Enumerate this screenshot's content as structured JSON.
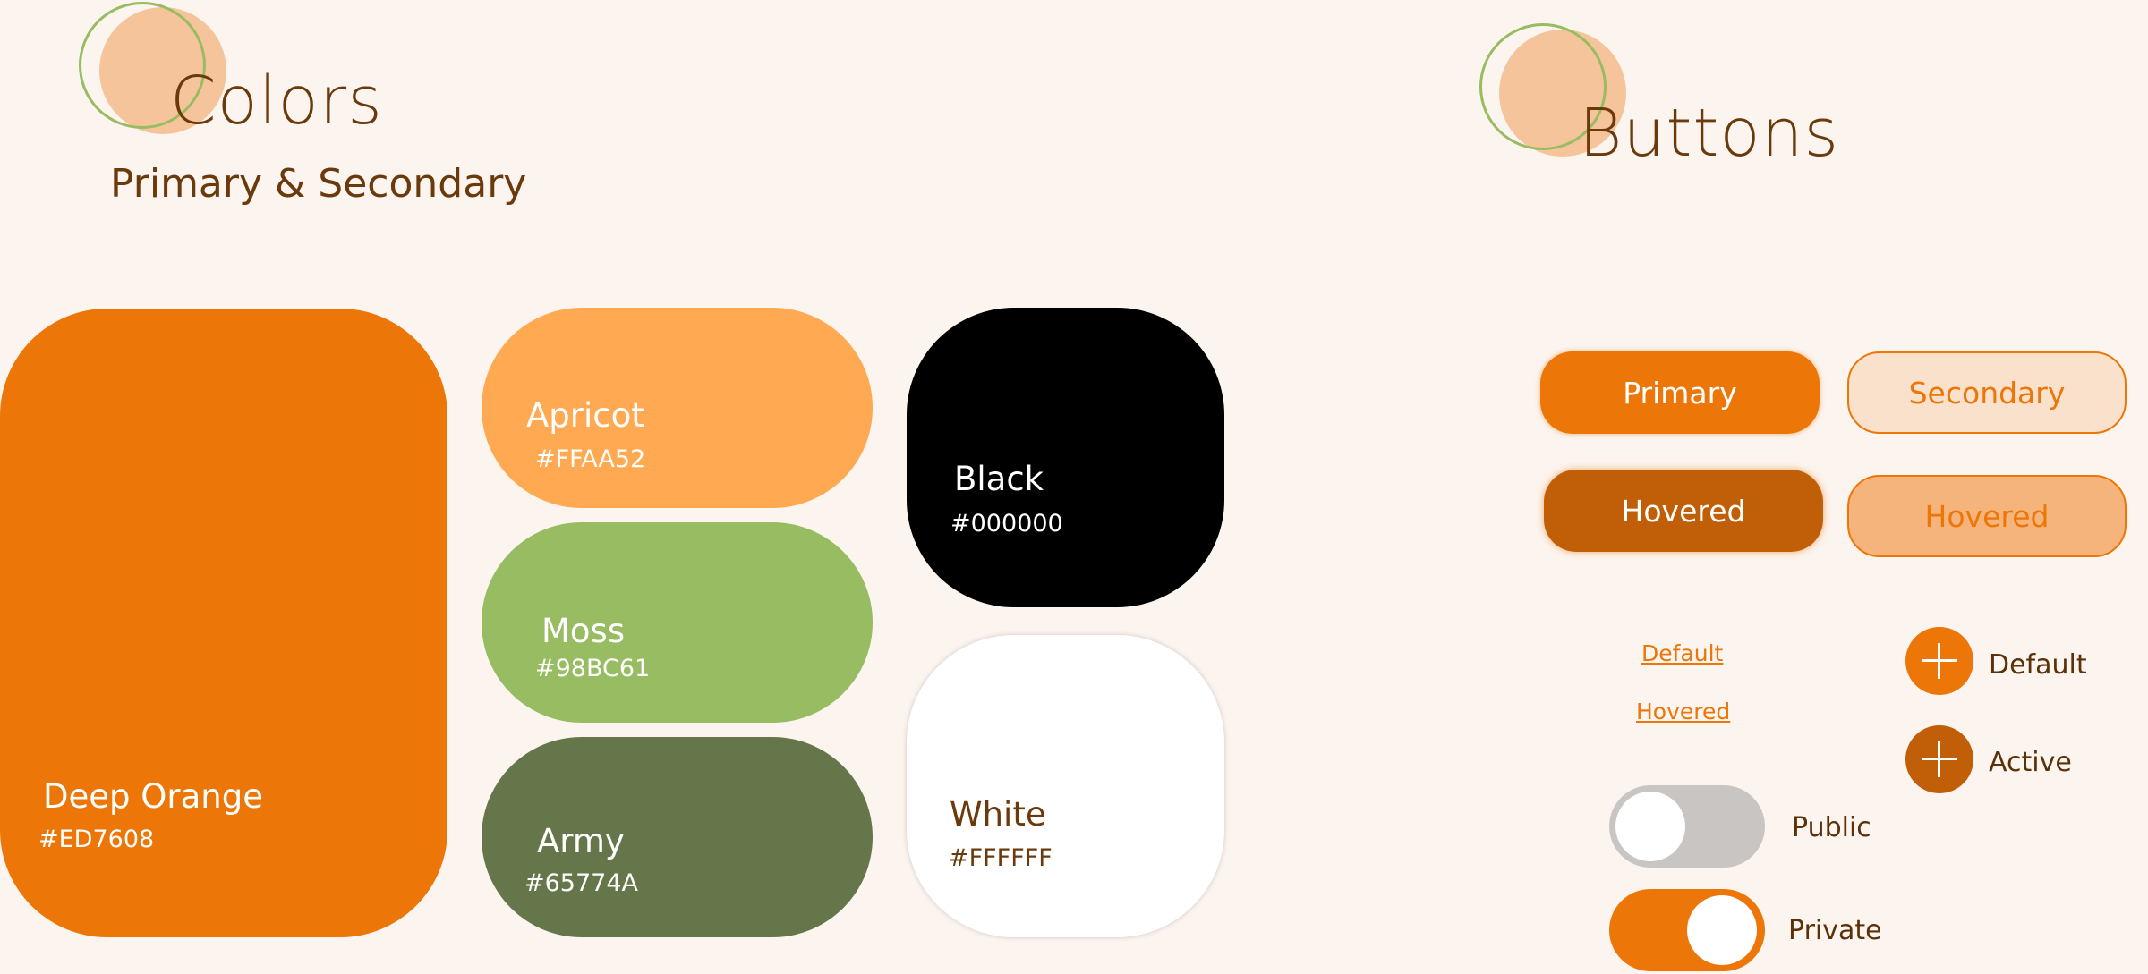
{
  "colors_section": {
    "title": "Colors",
    "subtitle": "Primary & Secondary"
  },
  "swatches": {
    "deep_orange": {
      "name": "Deep Orange",
      "hex": "#ED7608"
    },
    "apricot": {
      "name": "Apricot",
      "hex": "#FFAA52"
    },
    "moss": {
      "name": "Moss",
      "hex": "#98BC61"
    },
    "army": {
      "name": "Army",
      "hex": "#65774A"
    },
    "black": {
      "name": "Black",
      "hex": "#000000"
    },
    "white": {
      "name": "White",
      "hex": "#FFFFFF"
    }
  },
  "buttons_section": {
    "title": "Buttons",
    "primary_label": "Primary",
    "secondary_label": "Secondary",
    "primary_hovered_label": "Hovered",
    "secondary_hovered_label": "Hovered",
    "link_default_label": "Default",
    "link_hovered_label": "Hovered",
    "fab_default_label": "Default",
    "fab_active_label": "Active",
    "toggle_public_label": "Public",
    "toggle_private_label": "Private",
    "toggle_public_on": false,
    "toggle_private_on": true
  },
  "icons": {
    "add": "plus-icon"
  },
  "theme": {
    "background": "#fcf4ef",
    "text_brown": "#6b3a0c",
    "accent_orange": "#ed7608",
    "hover_orange": "#c05f08",
    "peach": "#f5c49a",
    "secondary_fill": "#fae1cc",
    "secondary_hover_fill": "#f4b47b",
    "toggle_off": "#c9c5c2"
  }
}
